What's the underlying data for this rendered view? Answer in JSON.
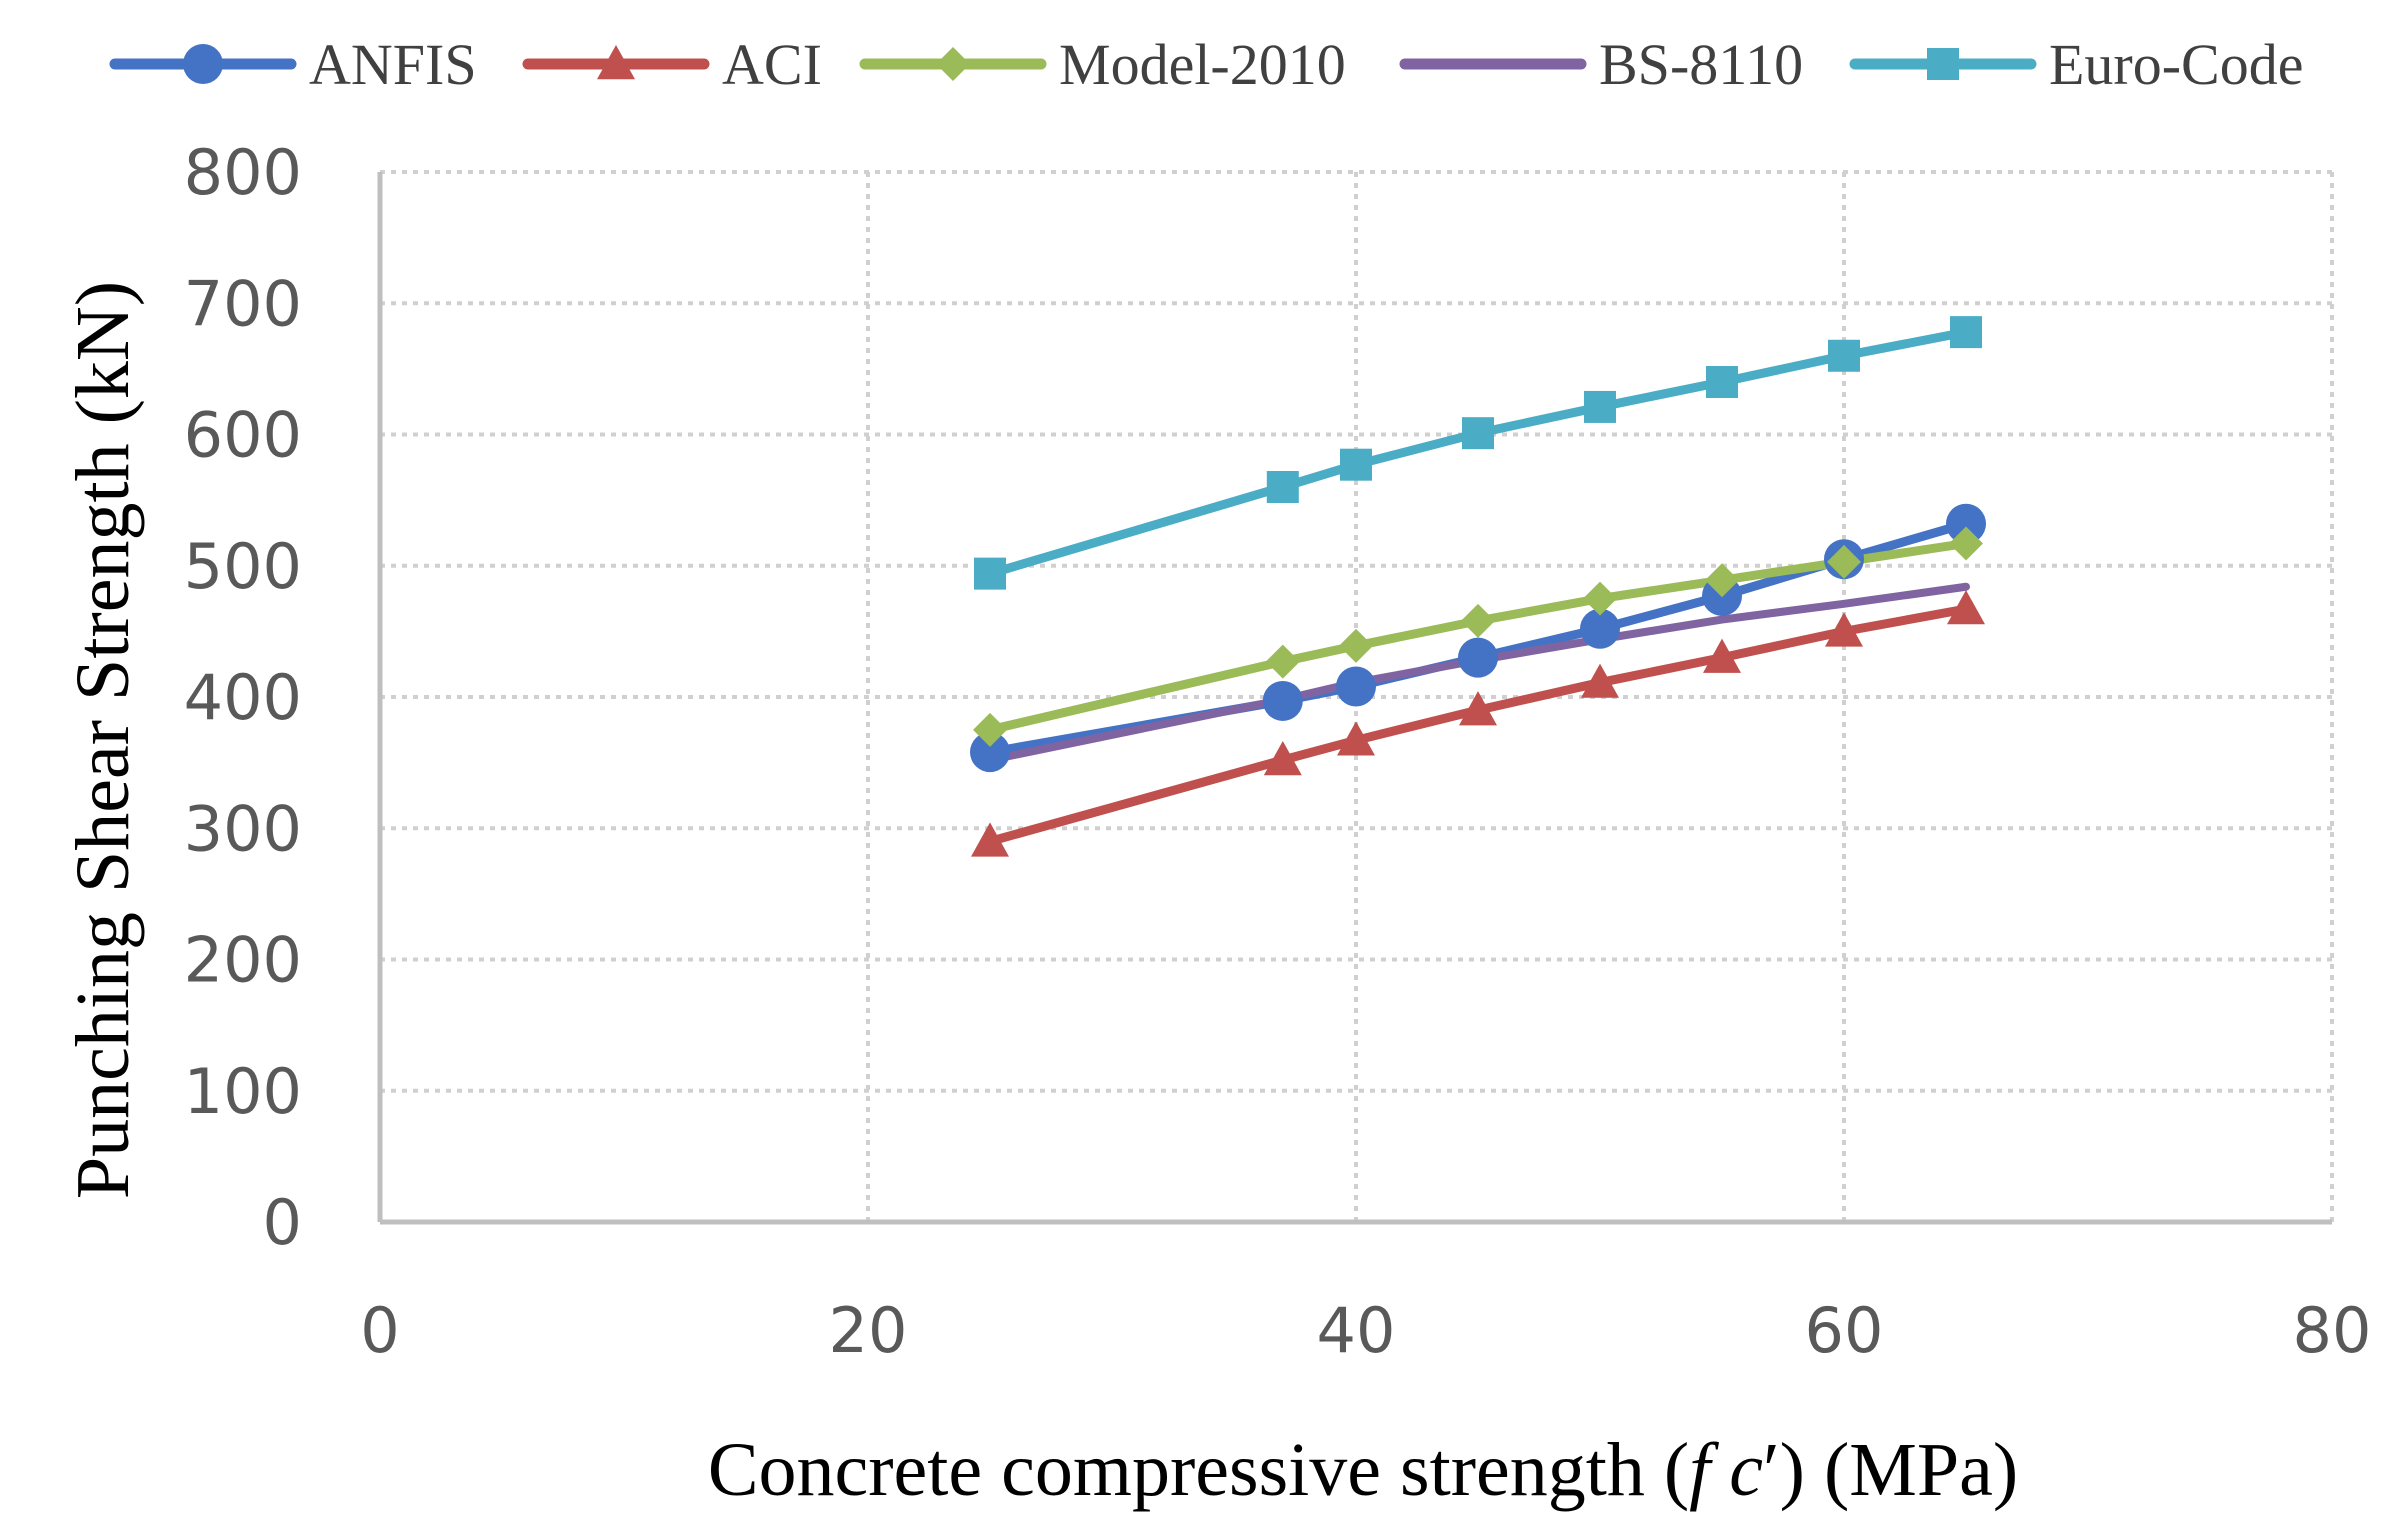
{
  "chart_data": {
    "type": "line",
    "title": "",
    "xlabel": "Concrete compressive strength (fc′) (MPa)",
    "xlabel_parts": {
      "prefix": "Concrete compressive strength (",
      "italic": "f c",
      "prime": "′",
      "suffix": ") (MPa)"
    },
    "ylabel": "Punching Shear Strength (kN)",
    "xlim": [
      0,
      80
    ],
    "ylim": [
      0,
      800
    ],
    "xticks": [
      "0",
      "20",
      "40",
      "60",
      "80"
    ],
    "yticks": [
      "0",
      "100",
      "200",
      "300",
      "400",
      "500",
      "600",
      "700",
      "800"
    ],
    "xtick_values": [
      0,
      20,
      40,
      60,
      80
    ],
    "ytick_values": [
      0,
      100,
      200,
      300,
      400,
      500,
      600,
      700,
      800
    ],
    "grid": true,
    "legend_position": "top",
    "series": [
      {
        "name": "ANFIS",
        "color": "#4472C4",
        "marker": "circle",
        "x": [
          25,
          37,
          40,
          45,
          50,
          55,
          60,
          65
        ],
        "values": [
          358,
          397,
          408,
          430,
          452,
          477,
          505,
          532
        ]
      },
      {
        "name": "ACI",
        "color": "#C0504D",
        "marker": "triangle",
        "x": [
          25,
          37,
          40,
          45,
          50,
          55,
          60,
          65
        ],
        "values": [
          290,
          352,
          367,
          390,
          411,
          430,
          450,
          467
        ]
      },
      {
        "name": "Model-2010",
        "color": "#9BBB59",
        "marker": "diamond",
        "x": [
          25,
          37,
          40,
          45,
          50,
          55,
          60,
          65
        ],
        "values": [
          375,
          427,
          439,
          458,
          475,
          489,
          503,
          517
        ]
      },
      {
        "name": "BS-8110",
        "color": "#8064A2",
        "marker": "none",
        "x": [
          25,
          37,
          40,
          45,
          50,
          55,
          60,
          65
        ],
        "values": [
          352,
          398,
          411,
          428,
          444,
          459,
          471,
          484
        ]
      },
      {
        "name": "Euro-Code",
        "color": "#4BACC6",
        "marker": "square",
        "x": [
          25,
          37,
          40,
          45,
          50,
          55,
          60,
          65
        ],
        "values": [
          494,
          560,
          577,
          601,
          621,
          640,
          660,
          678
        ]
      }
    ]
  }
}
